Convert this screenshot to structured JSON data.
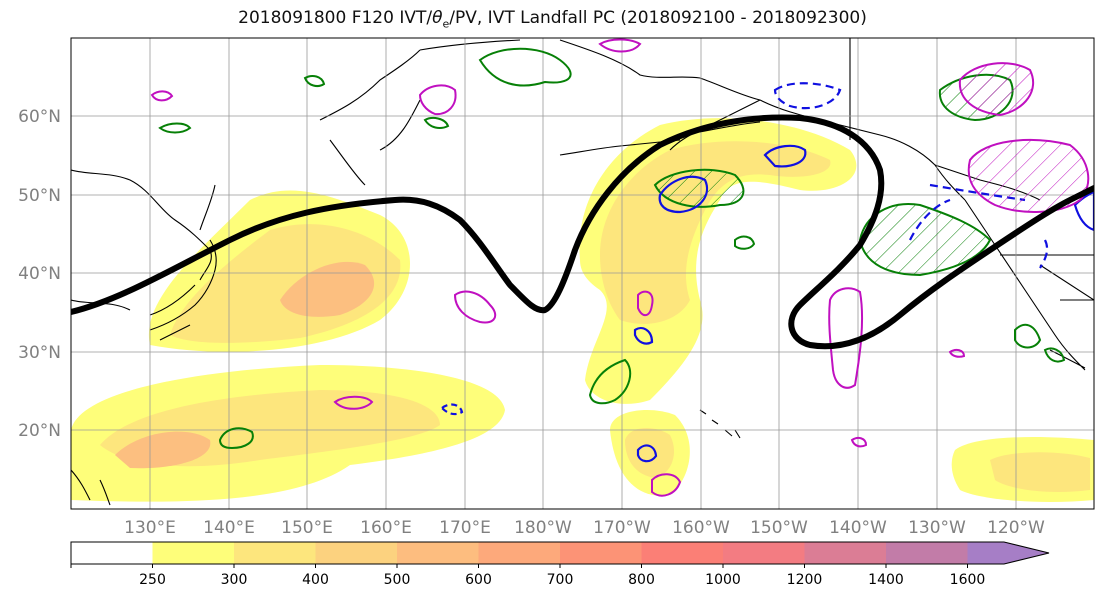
{
  "title": {
    "prefix": "2018091800 F120 IVT/",
    "theta": "θ",
    "sub": "e",
    "suffix": "/PV, IVT Landfall PC (2018092100 - 2018092300)"
  },
  "axes": {
    "lat_labels": [
      "20°N",
      "30°N",
      "40°N",
      "50°N",
      "60°N"
    ],
    "lon_labels": [
      "130°E",
      "140°E",
      "150°E",
      "160°E",
      "170°E",
      "180°W",
      "170°W",
      "160°W",
      "150°W",
      "140°W",
      "130°W",
      "120°W"
    ]
  },
  "colorbar": {
    "ticks": [
      "250",
      "300",
      "400",
      "500",
      "600",
      "700",
      "800",
      "1000",
      "1200",
      "1400",
      "1600"
    ],
    "colors": [
      "#ffffff",
      "#fefe7a",
      "#fde67d",
      "#fcd27f",
      "#fdbd7f",
      "#fda97b",
      "#fc9376",
      "#fb7f76",
      "#f37c82",
      "#db7d95",
      "#c27ca8",
      "#a67ec6"
    ]
  },
  "contour_colors": {
    "ivt_fill": "#fde67d",
    "pv_green": "#078007",
    "theta_blue": "#1010e0",
    "magenta": "#c010c0",
    "landfall_pc": "#000000"
  }
}
